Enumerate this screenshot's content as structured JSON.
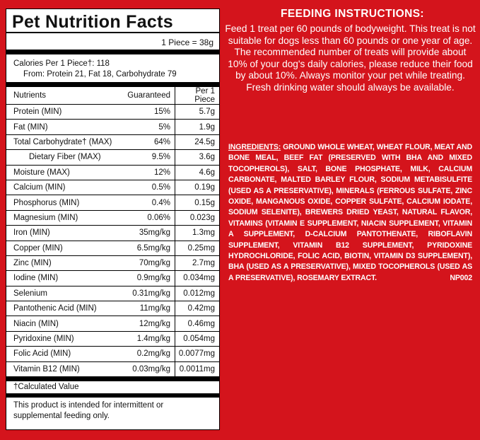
{
  "nutrition": {
    "title": "Pet Nutrition Facts",
    "serving": "1 Piece = 38g",
    "calories_line": "Calories Per 1 Piece†: 118",
    "from_line": "From: Protein 21, Fat 18, Carbohydrate 79",
    "headers": {
      "nutrient": "Nutrients",
      "guaranteed": "Guaranteed",
      "per_piece": "Per 1 Piece"
    },
    "rows": [
      {
        "name": "Protein (MIN)",
        "guaranteed": "15%",
        "per_piece": "5.7g"
      },
      {
        "name": "Fat (MIN)",
        "guaranteed": "5%",
        "per_piece": "1.9g"
      },
      {
        "name": "Total Carbohydrate† (MAX)",
        "guaranteed": "64%",
        "per_piece": "24.5g"
      },
      {
        "name": "Dietary Fiber (MAX)",
        "guaranteed": "9.5%",
        "per_piece": "3.6g"
      },
      {
        "name": "Moisture (MAX)",
        "guaranteed": "12%",
        "per_piece": "4.6g"
      },
      {
        "name": "Calcium (MIN)",
        "guaranteed": "0.5%",
        "per_piece": "0.19g"
      },
      {
        "name": "Phosphorus (MIN)",
        "guaranteed": "0.4%",
        "per_piece": "0.15g"
      },
      {
        "name": "Magnesium (MIN)",
        "guaranteed": "0.06%",
        "per_piece": "0.023g"
      },
      {
        "name": "Iron (MIN)",
        "guaranteed": "35mg/kg",
        "per_piece": "1.3mg"
      },
      {
        "name": "Copper (MIN)",
        "guaranteed": "6.5mg/kg",
        "per_piece": "0.25mg"
      },
      {
        "name": "Zinc (MIN)",
        "guaranteed": "70mg/kg",
        "per_piece": "2.7mg"
      },
      {
        "name": "Iodine (MIN)",
        "guaranteed": "0.9mg/kg",
        "per_piece": "0.034mg"
      },
      {
        "name": "Selenium",
        "guaranteed": "0.31mg/kg",
        "per_piece": "0.012mg"
      },
      {
        "name": "Pantothenic Acid (MIN)",
        "guaranteed": "11mg/kg",
        "per_piece": "0.42mg"
      },
      {
        "name": "Niacin (MIN)",
        "guaranteed": "12mg/kg",
        "per_piece": "0.46mg"
      },
      {
        "name": "Pyridoxine (MIN)",
        "guaranteed": "1.4mg/kg",
        "per_piece": "0.054mg"
      },
      {
        "name": "Folic Acid (MIN)",
        "guaranteed": "0.2mg/kg",
        "per_piece": "0.0077mg"
      },
      {
        "name": "Vitamin B12 (MIN)",
        "guaranteed": "0.03mg/kg",
        "per_piece": "0.0011mg"
      }
    ],
    "footnote": "†Calculated Value",
    "disclaimer": "This product is intended for intermittent or supplemental feeding only."
  },
  "feeding": {
    "title": "FEEDING INSTRUCTIONS:",
    "text": "Feed 1 treat per 60 pounds of bodyweight. This treat is not suitable for dogs less than 60 pounds or one year of age. The recommended number of treats will provide about 10% of your dog's daily calories, please reduce their food by about 10%. Always monitor your pet while treating. Fresh drinking water should always be available."
  },
  "ingredients": {
    "label": "INGREDIENTS:",
    "text": "GROUND WHOLE WHEAT, WHEAT FLOUR, MEAT AND BONE MEAL, BEEF FAT (PRESERVED WITH BHA AND MIXED TOCOPHEROLS), SALT, BONE PHOSPHATE, MILK, CALCIUM CARBONATE, MALTED BARLEY FLOUR, SODIUM METABISULFITE (USED AS A PRESERVATIVE), MINERALS (FERROUS SULFATE, ZINC OXIDE, MANGANOUS OXIDE, COPPER SULFATE, CALCIUM IODATE, SODIUM SELENITE), BREWERS DRIED YEAST, NATURAL FLAVOR, VITAMINS (VITAMIN E SUPPLEMENT, NIACIN SUPPLEMENT, VITAMIN A SUPPLEMENT, D-CALCIUM PANTOTHENATE, RIBOFLAVIN SUPPLEMENT, VITAMIN B12 SUPPLEMENT, PYRIDOXINE HYDROCHLORIDE, FOLIC ACID, BIOTIN, VITAMIN D3 SUPPLEMENT), BHA (USED AS A PRESERVATIVE), MIXED TOCOPHEROLS (USED AS A PRESERVATIVE), ROSEMARY EXTRACT.",
    "code": "NP002"
  },
  "colors": {
    "background": "#d4141c",
    "panel": "#ffffff",
    "text_light": "#ffffff"
  }
}
